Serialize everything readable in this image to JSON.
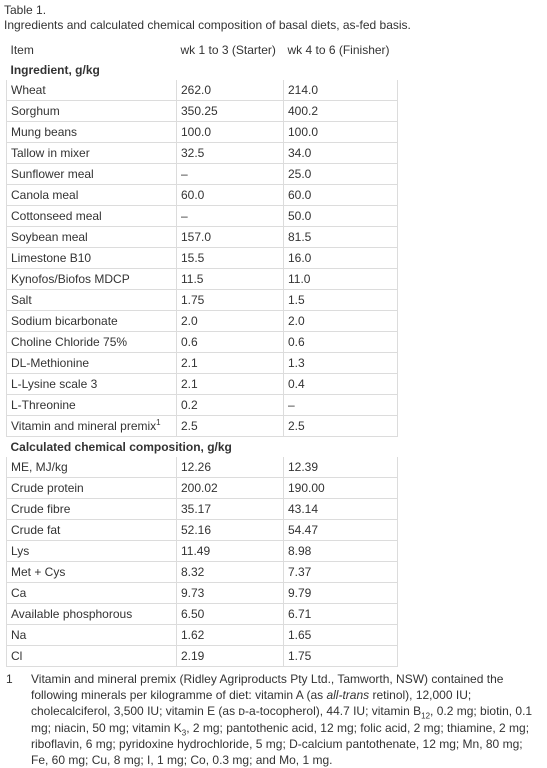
{
  "caption": {
    "label": "Table 1.",
    "text": "Ingredients and calculated chemical composition of basal diets, as-fed basis."
  },
  "columns": [
    "Item",
    "wk 1 to 3 (Starter)",
    "wk 4 to 6 (Finisher)"
  ],
  "section_ingredients": "Ingredient, g/kg",
  "ingredients": [
    [
      "Wheat",
      "262.0",
      "214.0"
    ],
    [
      "Sorghum",
      "350.25",
      "400.2"
    ],
    [
      "Mung beans",
      "100.0",
      "100.0"
    ],
    [
      "Tallow in mixer",
      "32.5",
      "34.0"
    ],
    [
      "Sunflower meal",
      "–",
      "25.0"
    ],
    [
      "Canola meal",
      "60.0",
      "60.0"
    ],
    [
      "Cottonseed meal",
      "–",
      "50.0"
    ],
    [
      "Soybean meal",
      "157.0",
      "81.5"
    ],
    [
      "Limestone B10",
      "15.5",
      "16.0"
    ],
    [
      "Kynofos/Biofos MDCP",
      "11.5",
      "11.0"
    ],
    [
      "Salt",
      "1.75",
      "1.5"
    ],
    [
      "Sodium bicarbonate",
      "2.0",
      "2.0"
    ],
    [
      "Choline Chloride 75%",
      "0.6",
      "0.6"
    ],
    [
      "DL-Methionine",
      "2.1",
      "1.3"
    ],
    [
      "L-Lysine scale 3",
      "2.1",
      "0.4"
    ],
    [
      "L-Threonine",
      "0.2",
      "–"
    ]
  ],
  "premix_row": {
    "label": "Vitamin and mineral premix",
    "footnote_mark": "1",
    "starter": "2.5",
    "finisher": "2.5"
  },
  "section_composition": "Calculated chemical composition, g/kg",
  "composition": [
    [
      "ME, MJ/kg",
      "12.26",
      "12.39"
    ],
    [
      "Crude protein",
      "200.02",
      "190.00"
    ],
    [
      "Crude fibre",
      "35.17",
      "43.14"
    ],
    [
      "Crude fat",
      "52.16",
      "54.47"
    ],
    [
      "Lys",
      "11.49",
      "8.98"
    ],
    [
      "Met + Cys",
      "8.32",
      "7.37"
    ],
    [
      "Ca",
      "9.73",
      "9.79"
    ],
    [
      "Available phosphorous",
      "6.50",
      "6.71"
    ],
    [
      "Na",
      "1.62",
      "1.65"
    ],
    [
      "Cl",
      "2.19",
      "1.75"
    ]
  ],
  "footnote": {
    "number": "1",
    "part1": "Vitamin and mineral premix (Ridley Agriproducts Pty Ltd., Tamworth, NSW) contained the following minerals per kilogramme of diet: vitamin A (as ",
    "italic": "all-trans",
    "part2": " retinol), 12,000 IU; cholecalciferol, 3,500 IU; vitamin E (as ᴅ-a-tocopherol), 44.7 IU; vitamin B",
    "sub1": "12",
    "part3": ", 0.2 mg; biotin, 0.1 mg; niacin, 50 mg; vitamin K",
    "sub2": "3",
    "part4": ", 2 mg; pantothenic acid, 12 mg; folic acid, 2 mg; thiamine, 2 mg; riboflavin, 6 mg; pyridoxine hydrochloride, 5 mg; D-calcium pantothenate, 12 mg; Mn, 80 mg; Fe, 60 mg; Cu, 8 mg; I, 1 mg; Co, 0.3 mg; and Mo, 1 mg."
  }
}
